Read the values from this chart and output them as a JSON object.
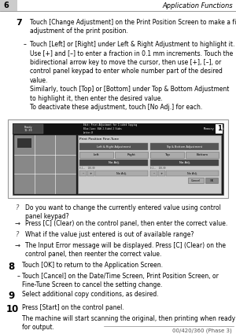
{
  "bg_color": "#ffffff",
  "header_num": "6",
  "header_title": "Application Functions",
  "footer_text": "00/420/360 (Phase 3)",
  "step7_num": "7",
  "step7_text": "Touch [Change Adjustment] on the Print Position Screen to make a fine\nadjustment of the print position.",
  "step7_bullet1": "Touch [Left] or [Right] under Left & Right Adjustment to highlight it.\nUse [+] and [–] to enter a fraction in 0.1 mm increments. Touch the\nbidirectional arrow key to move the cursor, then use [+], [–], or\ncontrol panel keypad to enter whole number part of the desired\nvalue.\nSimilarly, touch [Top] or [Bottom] under Top & Bottom Adjustment\nto highlight it, then enter the desired value.\nTo deactivate these adjustment, touch [No Adj.] for each.",
  "q1": "Do you want to change the currently entered value using control\npanel keypad?",
  "a1": "Press [C] (Clear) on the control panel, then enter the correct value.",
  "q2": "What if the value just entered is out of available range?",
  "a2": "The Input Error message will be displayed. Press [C] (Clear) on the\ncontrol panel, then reenter the correct value.",
  "step8_num": "8",
  "step8_text": "Touch [OK] to return to the Application Screen.",
  "step8_bullet": "Touch [Cancel] on the Date/Time Screen, Print Position Screen, or\nFine-Tune Screen to cancel the setting change.",
  "step9_num": "9",
  "step9_text": "Select additional copy conditions, as desired.",
  "step10_num": "10",
  "step10_text": "Press [Start] on the control panel.",
  "step10_sub": "The machine will start scanning the original, then printing when ready\nfor output."
}
